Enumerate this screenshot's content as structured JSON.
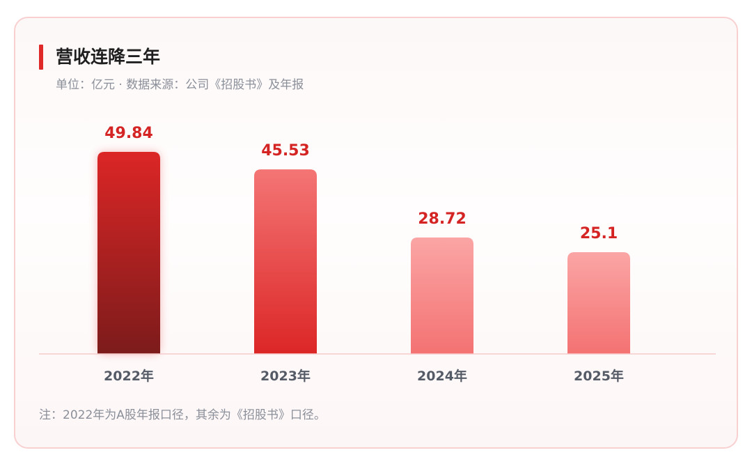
{
  "header": {
    "title": "营收连降三年",
    "subtitle": "单位：亿元 · 数据来源：公司《招股书》及年报"
  },
  "footnote": "注：2022年为A股年报口径，其余为《招股书》口径。",
  "colors": {
    "accent": "#e02a2a",
    "value_label": "#d42424",
    "axis_label": "#555b66"
  },
  "chart_data": {
    "type": "bar",
    "categories": [
      "2022年",
      "2023年",
      "2024年",
      "2025年"
    ],
    "values": [
      49.84,
      45.53,
      28.72,
      25.1
    ],
    "value_labels": [
      "49.84",
      "45.53",
      "28.72",
      "25.1"
    ],
    "ylim": [
      0,
      49.84
    ],
    "grid": false
  }
}
